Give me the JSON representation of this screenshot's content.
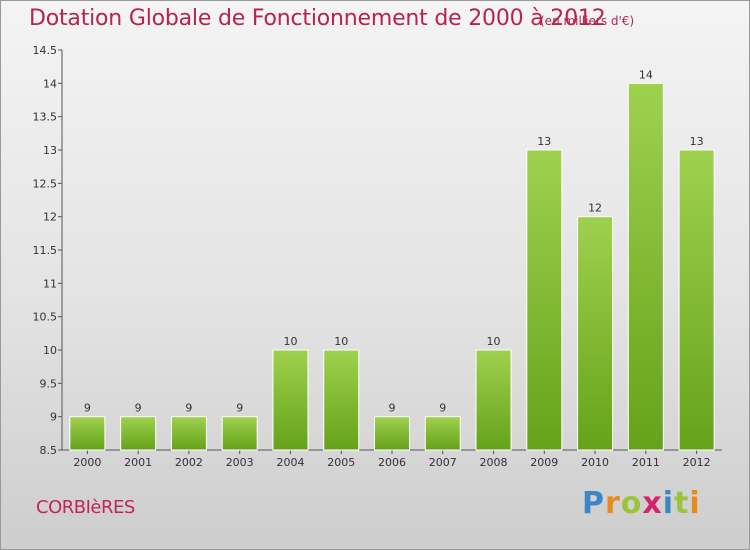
{
  "header": {
    "title": "Dotation Globale de Fonctionnement de 2000 à 2012",
    "subtitle": "(en milliers d'€)"
  },
  "commune": "CORBIèRES",
  "brand": {
    "letters": [
      "P",
      "r",
      "o",
      "x",
      "i",
      "t",
      "i"
    ]
  },
  "colors": {
    "bar_light": "#9fd14f",
    "bar_dark": "#65a219",
    "title": "#b5254e"
  },
  "chart_data": {
    "type": "bar",
    "title": "Dotation Globale de Fonctionnement de 2000 à 2012",
    "subtitle": "(en milliers d'€)",
    "categories": [
      "2000",
      "2001",
      "2002",
      "2003",
      "2004",
      "2005",
      "2006",
      "2007",
      "2008",
      "2009",
      "2010",
      "2011",
      "2012"
    ],
    "values": [
      9,
      9,
      9,
      9,
      10,
      10,
      9,
      9,
      10,
      13,
      12,
      14,
      13
    ],
    "ylim": [
      8.5,
      14.5
    ],
    "yticks": [
      "8.5",
      "9",
      "9.5",
      "10",
      "10.5",
      "11",
      "11.5",
      "12",
      "12.5",
      "13",
      "13.5",
      "14",
      "14.5"
    ],
    "grid": false,
    "xlabel": "",
    "ylabel": ""
  }
}
